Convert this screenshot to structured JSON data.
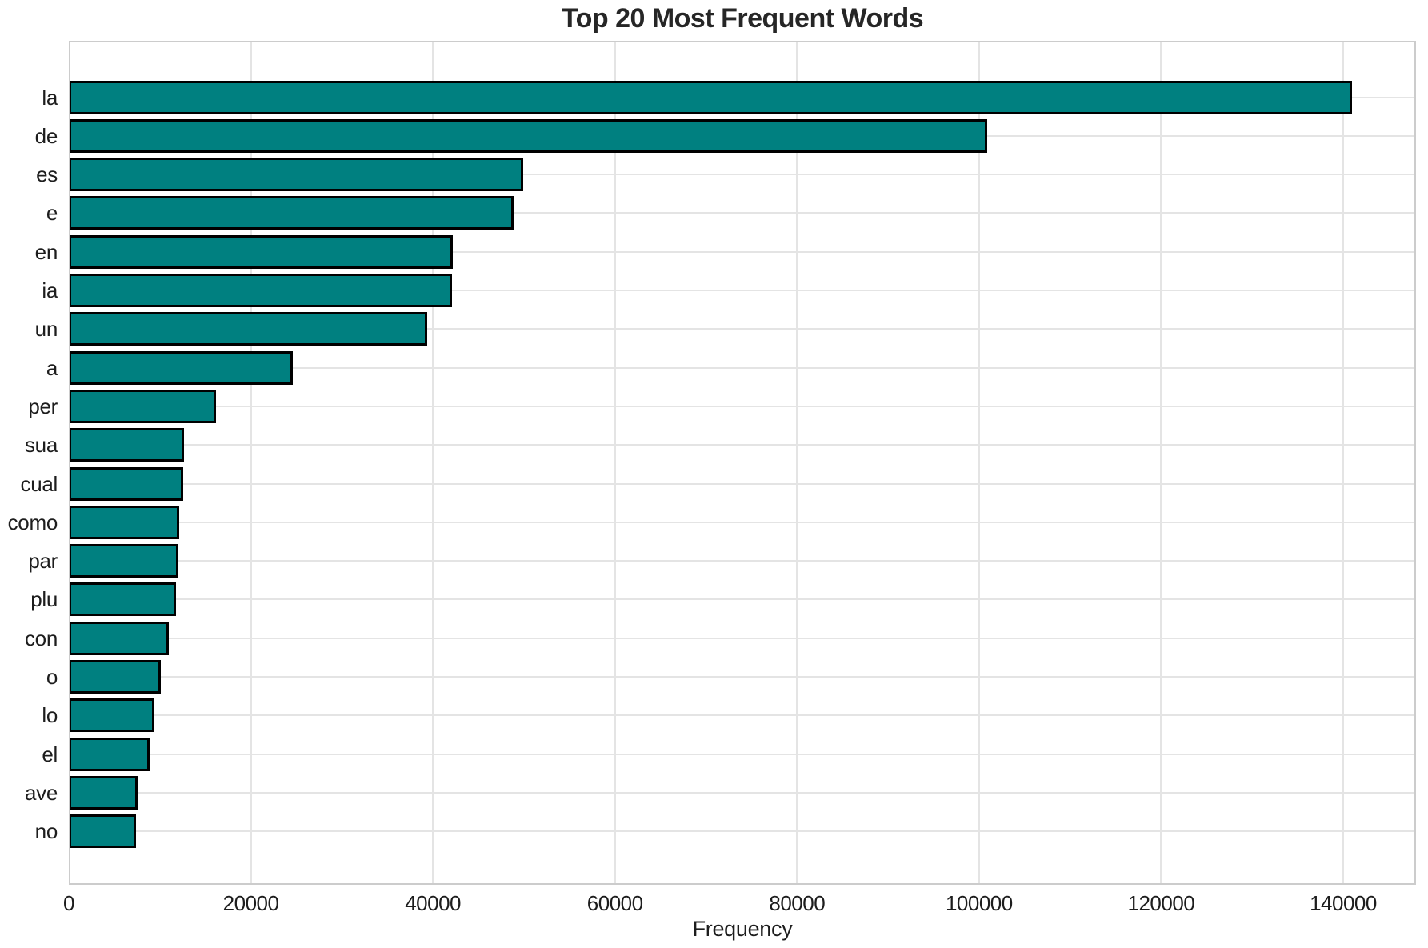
{
  "title": "Top 20 Most Frequent Words",
  "chart_data": {
    "type": "bar",
    "orientation": "horizontal",
    "title": "Top 20 Most Frequent Words",
    "xlabel": "Frequency",
    "ylabel": "",
    "categories": [
      "la",
      "de",
      "es",
      "e",
      "en",
      "ia",
      "un",
      "a",
      "per",
      "sua",
      "cual",
      "como",
      "par",
      "plu",
      "con",
      "o",
      "lo",
      "el",
      "ave",
      "no"
    ],
    "values": [
      141000,
      100900,
      49900,
      48900,
      42200,
      42100,
      39400,
      24600,
      16200,
      12650,
      12600,
      12150,
      12050,
      11800,
      10950,
      10150,
      9400,
      8900,
      7600,
      7400
    ],
    "xlim": [
      0,
      148000
    ],
    "xticks": [
      0,
      20000,
      40000,
      60000,
      80000,
      100000,
      120000,
      140000
    ],
    "grid": true,
    "legend": "none",
    "bar_color": "#008080",
    "bar_edge_color": "#000000",
    "grid_color": "#e4e4e4",
    "spine_color": "#cccccc",
    "text_color": "#262626"
  }
}
